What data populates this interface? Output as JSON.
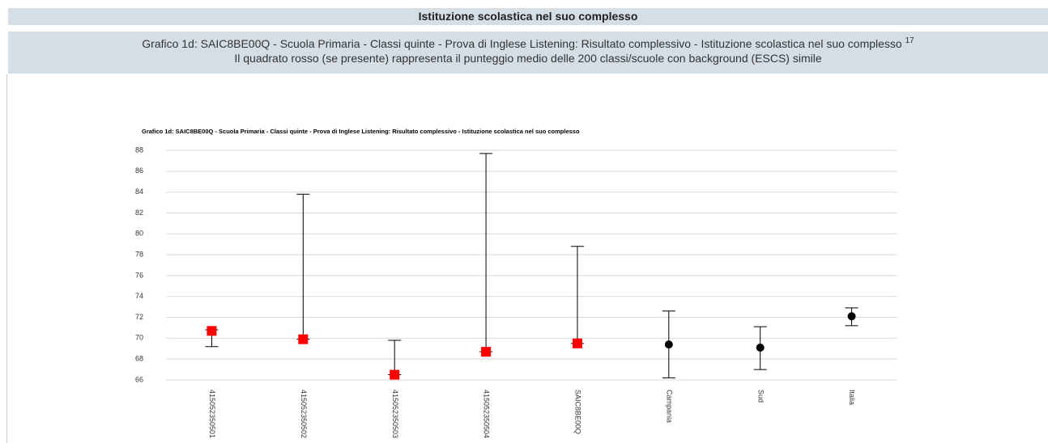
{
  "header": {
    "title": "Istituzione scolastica nel suo complesso",
    "subtitle": "Grafico 1d: SAIC8BE00Q - Scuola Primaria - Classi quinte - Prova di Inglese Listening: Risultato complessivo - Istituzione scolastica nel suo complesso",
    "note": "17",
    "subtitle2": "Il quadrato rosso (se presente) rappresenta il punteggio medio delle 200 classi/scuole con background (ESCS) simile"
  },
  "chart_data": {
    "type": "errorbar",
    "title": "Grafico 1d: SAIC8BE00Q - Scuola Primaria - Classi quinte - Prova di Inglese Listening: Risultato complessivo - Istituzione scolastica nel suo complesso",
    "categories": [
      "415052350501",
      "415052350502",
      "415052350503",
      "415052350504",
      "SAIC8BE00Q",
      "Campania",
      "Sud",
      "Italia"
    ],
    "values": [
      70.7,
      69.9,
      66.5,
      68.7,
      69.5,
      69.4,
      69.1,
      72.1
    ],
    "low": [
      69.2,
      69.9,
      66.5,
      68.7,
      69.5,
      66.2,
      67.0,
      71.2
    ],
    "high": [
      70.8,
      83.8,
      69.8,
      87.7,
      78.8,
      72.6,
      71.1,
      72.9
    ],
    "markers": [
      "square",
      "square",
      "square",
      "square",
      "square",
      "circle",
      "circle",
      "circle"
    ],
    "colors": [
      "#ff0000",
      "#ff0000",
      "#ff0000",
      "#ff0000",
      "#ff0000",
      "#000000",
      "#000000",
      "#000000"
    ],
    "ylim": [
      66,
      88
    ],
    "yticks": [
      66,
      68,
      70,
      72,
      74,
      76,
      78,
      80,
      82,
      84,
      86,
      88
    ],
    "grid": true
  }
}
